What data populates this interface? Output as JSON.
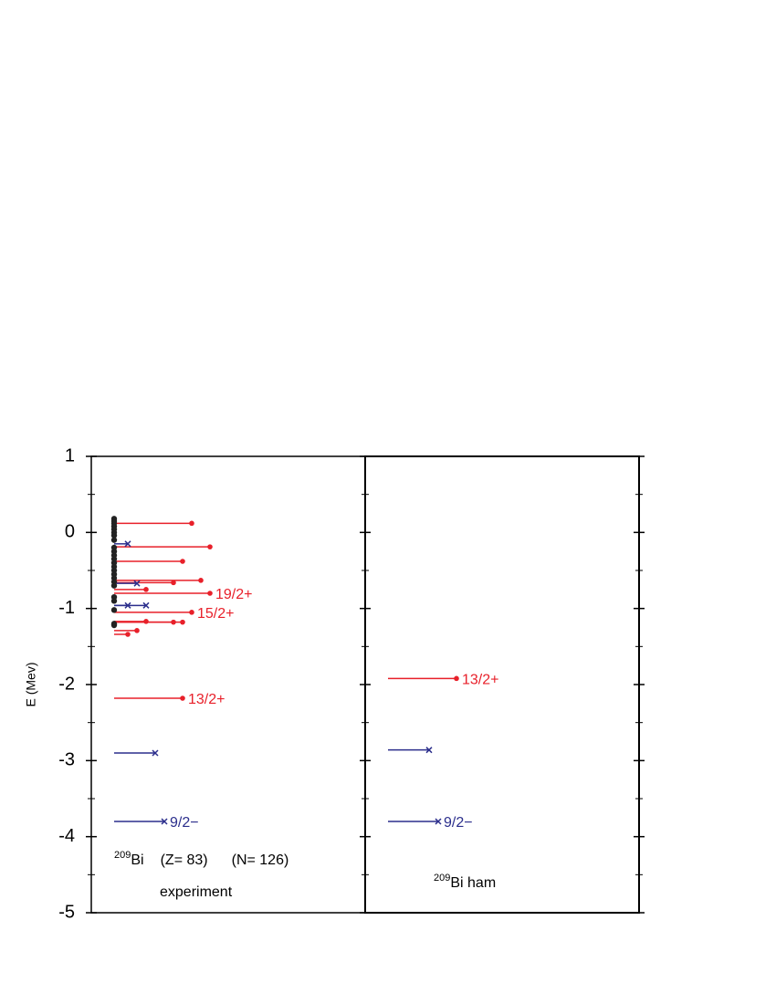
{
  "chart_data": {
    "type": "level",
    "ylabel": "E (Mev)",
    "ylim": [
      -5,
      1
    ],
    "yticks": [
      1,
      0,
      -1,
      -2,
      -3,
      -4,
      -5
    ],
    "yminor": [
      0.5,
      -0.5,
      -1.5,
      -2.5,
      -3.5,
      -4.5
    ],
    "panels": [
      {
        "mass": "209",
        "element": "Bi",
        "z": "(Z= 83)",
        "n": "(N= 126)",
        "caption": "experiment",
        "series": [
          {
            "color": "#e8202a",
            "marker": "dot",
            "energies": [
              0.12,
              -0.19,
              -0.38,
              -0.63,
              -0.66,
              -0.75,
              -0.8,
              -1.05,
              -1.17,
              -1.18,
              -1.18,
              -1.29,
              -1.34,
              -2.18
            ],
            "twoJ": [
              15,
              19,
              13,
              17,
              11,
              5,
              19,
              15,
              5,
              11,
              13,
              3,
              1,
              13
            ],
            "labels": [
              null,
              null,
              null,
              null,
              null,
              null,
              "19/2+",
              "15/2+",
              null,
              null,
              null,
              null,
              null,
              "13/2+"
            ]
          },
          {
            "color": "#2b2e8c",
            "marker": "cross",
            "energies": [
              -0.15,
              -0.67,
              -0.96,
              -0.96,
              -2.9,
              -3.8
            ],
            "twoJ": [
              1,
              3,
              1,
              5,
              7,
              9
            ],
            "labels": [
              null,
              null,
              null,
              null,
              null,
              "9/2−"
            ]
          },
          {
            "color": "#222222",
            "marker": "dot",
            "energies": [
              0.18,
              0.15,
              0.12,
              0.08,
              0.04,
              0,
              -0.04,
              -0.1,
              -0.2,
              -0.25,
              -0.3,
              -0.35,
              -0.4,
              -0.45,
              -0.5,
              -0.55,
              -0.6,
              -0.65,
              -0.7,
              -0.85,
              -0.9,
              -1.02,
              -1.2,
              -1.22
            ]
          }
        ]
      },
      {
        "mass": "209",
        "element": "Bi ham",
        "series": [
          {
            "color": "#e8202a",
            "marker": "dot",
            "energies": [
              -1.92
            ],
            "twoJ": [
              13
            ],
            "labels": [
              "13/2+"
            ]
          },
          {
            "color": "#2b2e8c",
            "marker": "cross",
            "energies": [
              -2.86,
              -3.8
            ],
            "twoJ": [
              7,
              9
            ],
            "labels": [
              null,
              "9/2−"
            ]
          }
        ]
      }
    ]
  }
}
